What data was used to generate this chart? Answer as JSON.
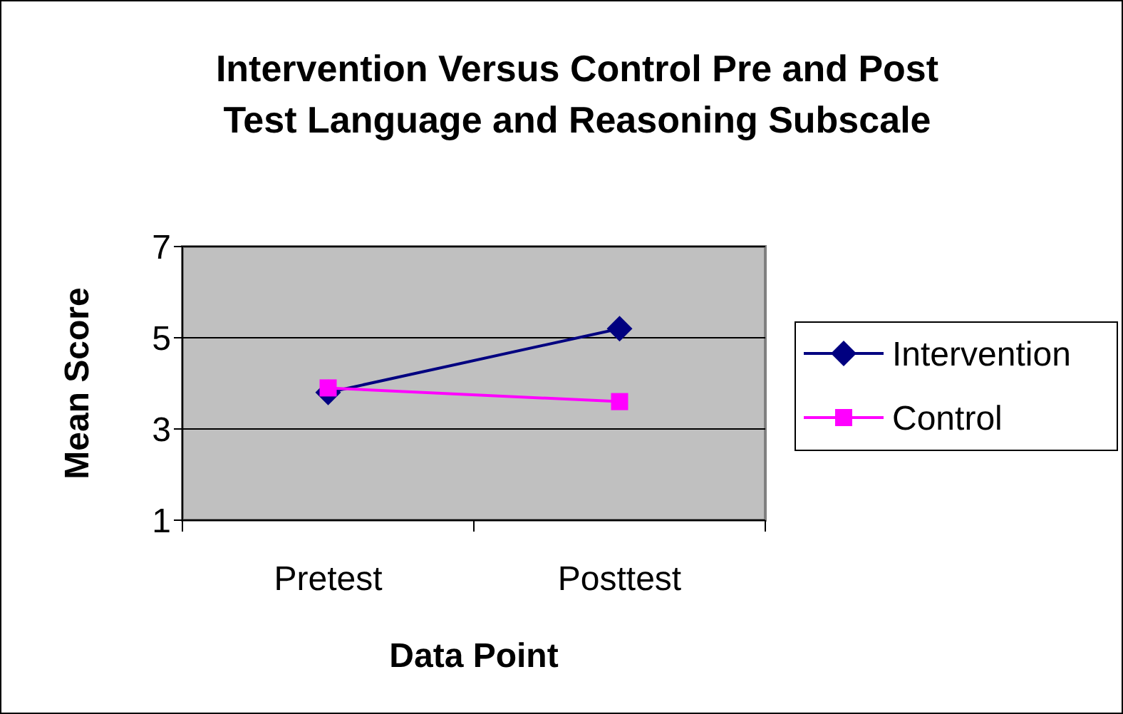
{
  "chart_data": {
    "type": "line",
    "title": "Intervention Versus Control Pre and Post Test Language and Reasoning Subscale",
    "xlabel": "Data Point",
    "ylabel": "Mean Score",
    "categories": [
      "Pretest",
      "Posttest"
    ],
    "series": [
      {
        "name": "Intervention",
        "color": "#000080",
        "values": [
          3.8,
          5.2
        ],
        "marker": "diamond"
      },
      {
        "name": "Control",
        "color": "#ff00ff",
        "values": [
          3.9,
          3.6
        ],
        "marker": "square"
      }
    ],
    "ylim": [
      1,
      7
    ],
    "yticks": [
      1,
      3,
      5,
      7
    ],
    "grid": "y",
    "legend": "right"
  }
}
